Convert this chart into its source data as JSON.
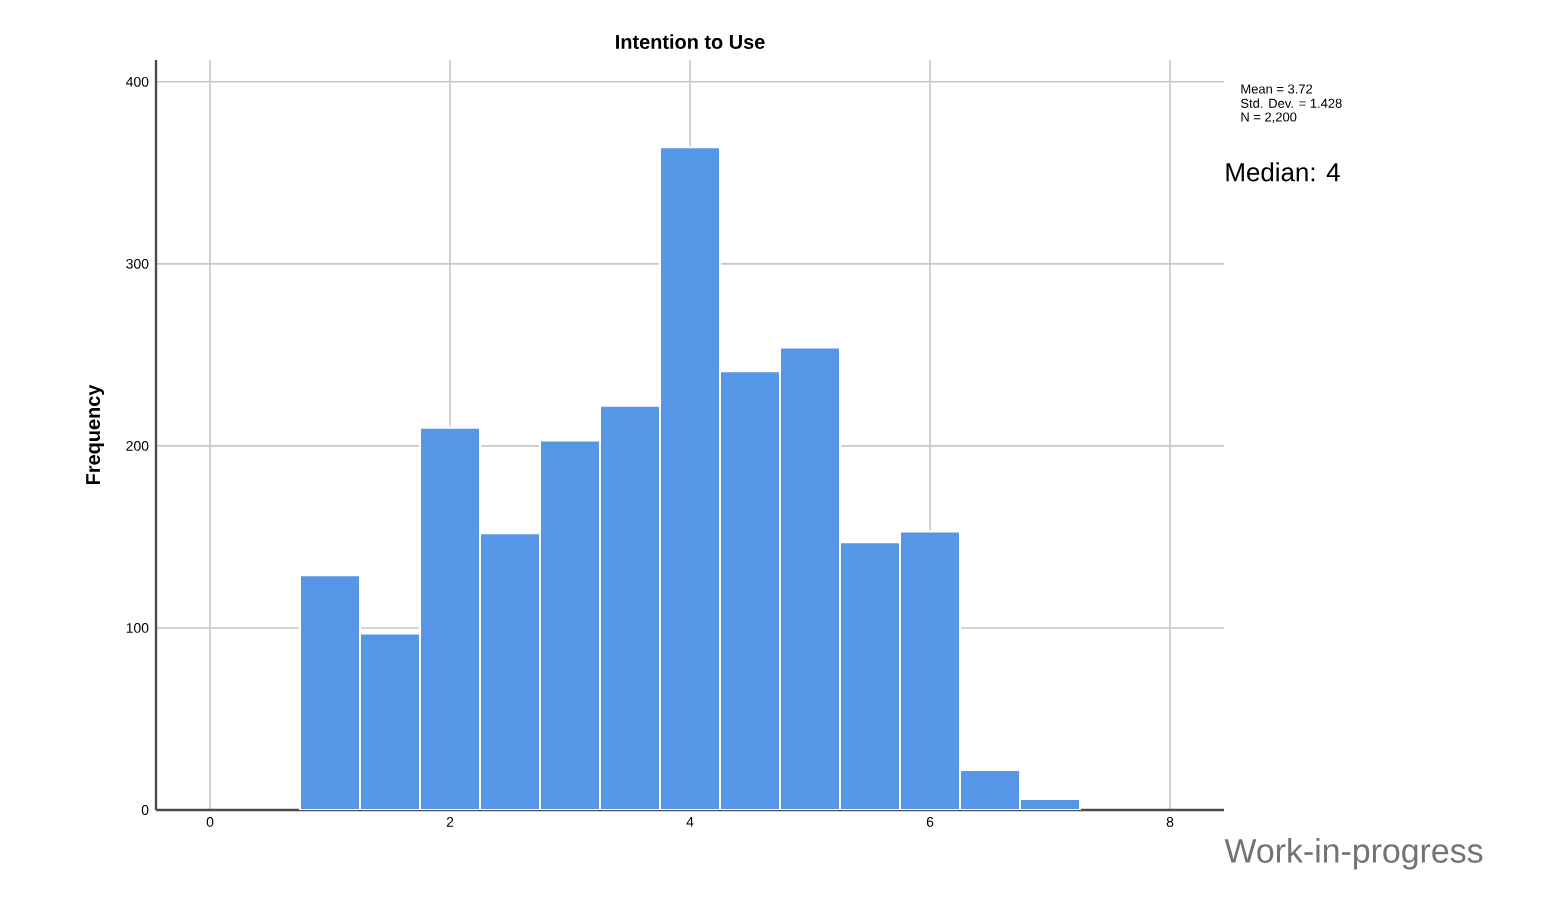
{
  "chart_data": {
    "type": "histogram",
    "title": "Intention to Use",
    "ylabel": "Frequency",
    "bins": [
      0.75,
      1.25,
      1.75,
      2.25,
      2.75,
      3.25,
      3.75,
      4.25,
      4.75,
      5.25,
      5.75,
      6.25,
      6.75,
      7.25
    ],
    "values": [
      129,
      97,
      210,
      152,
      203,
      222,
      364,
      241,
      254,
      147,
      153,
      22,
      6
    ],
    "color": "#5596e6",
    "xlim": [
      -0.45,
      8.45
    ],
    "ylim": [
      0,
      412
    ],
    "xticks": [
      0,
      2,
      4,
      6,
      8
    ],
    "yticks": [
      0,
      100,
      200,
      300,
      400
    ],
    "grid": true,
    "annotations": [
      "Mean = 3.72",
      "Std. Dev. = 1.428",
      "N = 2,200",
      "Median: 4",
      "Work-in-progress"
    ]
  }
}
